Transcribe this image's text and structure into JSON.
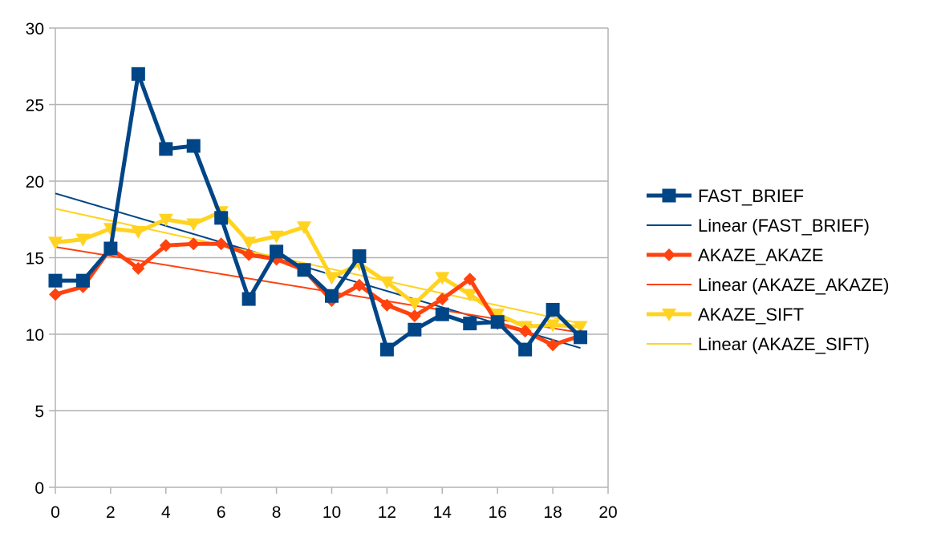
{
  "chart_data": {
    "type": "line",
    "title": "",
    "xlabel": "",
    "ylabel": "",
    "xlim": [
      0,
      20
    ],
    "ylim": [
      0,
      30
    ],
    "x_ticks": [
      "0",
      "2",
      "4",
      "6",
      "8",
      "10",
      "12",
      "14",
      "16",
      "18",
      "20"
    ],
    "y_ticks": [
      "0",
      "5",
      "10",
      "15",
      "20",
      "25",
      "30"
    ],
    "grid": "horizontal",
    "legend_position": "right",
    "x": [
      0,
      1,
      2,
      3,
      4,
      5,
      6,
      7,
      8,
      9,
      10,
      11,
      12,
      13,
      14,
      15,
      16,
      17,
      18,
      19
    ],
    "series": [
      {
        "name": "FAST_BRIEF",
        "color": "#004586",
        "marker": "square",
        "values": [
          13.5,
          13.5,
          15.6,
          27.0,
          22.1,
          22.3,
          17.6,
          12.3,
          15.4,
          14.2,
          12.5,
          15.1,
          9.0,
          10.3,
          11.3,
          10.7,
          10.8,
          9.0,
          11.6,
          9.8
        ],
        "trendline": {
          "name": "Linear (FAST_BRIEF)",
          "start": 19.2,
          "end": 9.1
        }
      },
      {
        "name": "AKAZE_AKAZE",
        "color": "#ff420e",
        "marker": "diamond",
        "values": [
          12.6,
          13.1,
          15.6,
          14.3,
          15.8,
          15.9,
          15.9,
          15.2,
          14.9,
          14.2,
          12.2,
          13.2,
          11.9,
          11.2,
          12.3,
          13.6,
          10.7,
          10.2,
          9.3,
          9.9
        ],
        "trendline": {
          "name": "Linear (AKAZE_AKAZE)",
          "start": 15.7,
          "end": 10.1
        }
      },
      {
        "name": "AKAZE_SIFT",
        "color": "#ffd320",
        "marker": "triangle-down",
        "values": [
          16.0,
          16.2,
          16.9,
          16.7,
          17.5,
          17.2,
          18.0,
          16.0,
          16.4,
          17.0,
          13.7,
          14.6,
          13.4,
          12.0,
          13.7,
          12.6,
          11.3,
          10.5,
          10.6,
          10.5
        ],
        "trendline": {
          "name": "Linear (AKAZE_SIFT)",
          "start": 18.2,
          "end": 10.7
        }
      }
    ]
  }
}
